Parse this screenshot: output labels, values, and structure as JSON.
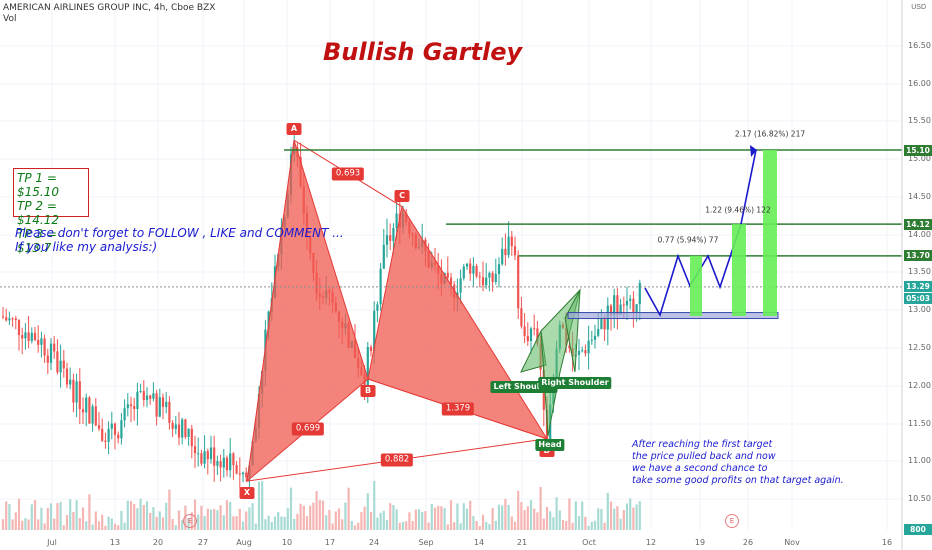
{
  "header": {
    "symbol_line": "AMERICAN AIRLINES GROUP INC, 4h, Cboe BZX",
    "vol_label": "Vol"
  },
  "title": "Bullish Gartley",
  "tp_lines": [
    "TP 1 = $15.10",
    "TP 2 = $14.12",
    "TP 3 = $13.7"
  ],
  "follow_lines": [
    "Please don't forget  to FOLLOW , LIKE and COMMENT ...",
    "If you like my analysis:)"
  ],
  "note_lines": [
    "After reaching the first target",
    "the price pulled back and now",
    "we have a second chance to",
    "take some good profits on that target again."
  ],
  "currency": "USD",
  "chart_data": {
    "type": "candlestick",
    "y_axis_ticks": [
      "16.50",
      "16.00",
      "15.50",
      "15.00",
      "14.50",
      "14.00",
      "13.50",
      "13.00",
      "12.50",
      "12.00",
      "11.50",
      "11.00",
      "10.50"
    ],
    "ylim": [
      10.3,
      16.8
    ],
    "x_axis_ticks": [
      "Jul",
      "13",
      "20",
      "27",
      "Aug",
      "10",
      "17",
      "24",
      "Sep",
      "14",
      "21",
      "Oct",
      "12",
      "19",
      "26",
      "Nov",
      "16"
    ],
    "gartley_points": [
      {
        "label": "X",
        "price": 10.72
      },
      {
        "label": "A",
        "price": 15.23
      },
      {
        "label": "B",
        "price": 12.07
      },
      {
        "label": "C",
        "price": 14.35
      },
      {
        "label": "D",
        "price": 11.28
      }
    ],
    "gartley_ratios": [
      "0.693",
      "0.699",
      "1.379",
      "0.882"
    ],
    "head_shoulders_labels": [
      "Left Shoulder",
      "Head",
      "Right Shoulder"
    ],
    "horizontal_levels": [
      {
        "price": 15.1,
        "label": "15.10",
        "color": "#2e7d32"
      },
      {
        "price": 14.12,
        "label": "14.12",
        "color": "#2e7d32"
      },
      {
        "price": 13.7,
        "label": "13.70",
        "color": "#2e7d32"
      },
      {
        "price": 13.29,
        "label": "13.29",
        "color": "#8c8c8c"
      }
    ],
    "current_price": "13.29",
    "countdown": "05:03",
    "target_annotations": [
      "0.77 (5.94%) 77",
      "1.22 (9.46%) 122",
      "2.17 (16.82%) 217"
    ],
    "volume_tag": "800",
    "colors": {
      "up": "#26a69a",
      "down": "#ef5350",
      "pattern": "#f05a50",
      "target_green": "#2e7d32",
      "projection": "#1a1acc"
    }
  }
}
